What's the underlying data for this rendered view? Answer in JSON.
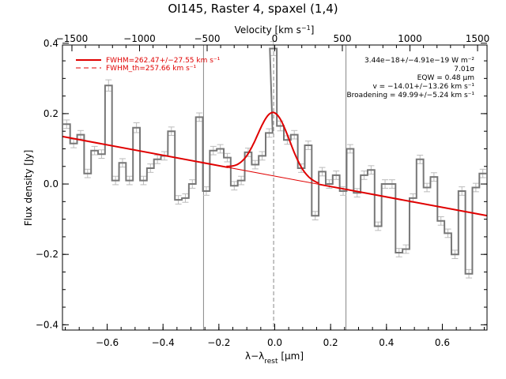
{
  "chart_data": {
    "type": "line",
    "title": "OI145, Raster 4, spaxel (1,4)",
    "xlabel": "λ−λ_rest [μm]",
    "xlabel_parts": {
      "main": "λ−λ",
      "sub": "rest",
      "unit": " [μm]"
    },
    "ylabel": "Flux density [Jy]",
    "top_axis_label": "Velocity [km s⁻¹]",
    "top_axis_label_parts": {
      "main": "Velocity [km s",
      "sup": "−1",
      "end": "]"
    },
    "xlim": [
      -0.76,
      0.76
    ],
    "ylim": [
      -0.415,
      0.395
    ],
    "top_xlim": [
      -1570,
      1570
    ],
    "x_ticks": [
      -0.6,
      -0.4,
      -0.2,
      0.0,
      0.2,
      0.4,
      0.6
    ],
    "x_tick_labels": [
      "−0.6",
      "−0.4",
      "−0.2",
      "0.0",
      "0.2",
      "0.4",
      "0.6"
    ],
    "y_ticks": [
      -0.4,
      -0.2,
      0.0,
      0.2,
      0.4
    ],
    "y_tick_labels": [
      "−0.4",
      "−0.2",
      "0.0",
      "0.2",
      "0.4"
    ],
    "top_ticks": [
      -1500,
      -1000,
      -500,
      0,
      500,
      1000,
      1500
    ],
    "top_tick_labels": [
      "−1500",
      "−1000",
      "−500",
      "0",
      "500",
      "1000",
      "1500"
    ],
    "vertical_lines": [
      -0.255,
      0.255
    ],
    "center_dashed_line": -0.004,
    "spectrum": {
      "x": [
        -0.745,
        -0.72,
        -0.695,
        -0.67,
        -0.645,
        -0.62,
        -0.595,
        -0.57,
        -0.545,
        -0.52,
        -0.495,
        -0.47,
        -0.445,
        -0.42,
        -0.395,
        -0.37,
        -0.345,
        -0.32,
        -0.295,
        -0.27,
        -0.245,
        -0.22,
        -0.195,
        -0.17,
        -0.145,
        -0.12,
        -0.095,
        -0.07,
        -0.045,
        -0.02,
        -0.005,
        0.02,
        0.045,
        0.07,
        0.095,
        0.12,
        0.145,
        0.17,
        0.195,
        0.22,
        0.245,
        0.27,
        0.295,
        0.32,
        0.345,
        0.37,
        0.395,
        0.42,
        0.445,
        0.47,
        0.495,
        0.52,
        0.545,
        0.57,
        0.595,
        0.62,
        0.645,
        0.67,
        0.695,
        0.72,
        0.745
      ],
      "y": [
        0.17,
        0.115,
        0.14,
        0.03,
        0.095,
        0.085,
        0.28,
        0.01,
        0.06,
        0.01,
        0.16,
        0.01,
        0.045,
        0.07,
        0.08,
        0.15,
        -0.045,
        -0.04,
        0.0,
        0.19,
        -0.02,
        0.095,
        0.1,
        0.075,
        -0.005,
        0.01,
        0.09,
        0.055,
        0.08,
        0.145,
        0.385,
        0.165,
        0.125,
        0.14,
        0.045,
        0.11,
        -0.09,
        0.035,
        0.0,
        0.025,
        -0.02,
        0.1,
        -0.025,
        0.025,
        0.04,
        -0.12,
        0.0,
        0.0,
        -0.195,
        -0.185,
        -0.04,
        0.07,
        -0.01,
        0.02,
        -0.105,
        -0.14,
        -0.2,
        -0.02,
        -0.255,
        -0.01,
        0.03
      ],
      "errors": [
        0.012,
        0.012,
        0.012,
        0.012,
        0.012,
        0.012,
        0.016,
        0.012,
        0.012,
        0.012,
        0.014,
        0.012,
        0.012,
        0.012,
        0.012,
        0.012,
        0.012,
        0.012,
        0.012,
        0.012,
        0.012,
        0.012,
        0.012,
        0.012,
        0.012,
        0.012,
        0.012,
        0.012,
        0.012,
        0.012,
        0.02,
        0.014,
        0.012,
        0.012,
        0.012,
        0.012,
        0.012,
        0.012,
        0.012,
        0.012,
        0.012,
        0.012,
        0.012,
        0.012,
        0.012,
        0.012,
        0.012,
        0.012,
        0.012,
        0.012,
        0.012,
        0.012,
        0.012,
        0.012,
        0.012,
        0.012,
        0.012,
        0.012,
        0.012,
        0.012,
        0.012
      ]
    },
    "baseline": {
      "y_at_xmin": 0.135,
      "y_at_xmax": -0.09
    },
    "gaussian": {
      "center": -0.004,
      "peak_above_baseline": 0.18,
      "fwhm_um": 0.134,
      "x_range": [
        -0.17,
        0.16
      ]
    },
    "legend": [
      {
        "label": "FWHM=262.47+/−27.55 km s⁻¹",
        "style": "solid",
        "color": "#e00000"
      },
      {
        "label": "FWHM_th=257.66 km s⁻¹",
        "style": "dashed",
        "color": "#e00000"
      }
    ],
    "annotations": [
      "3.44e−18+/−4.91e−19 W m⁻²",
      "7.01σ",
      "EQW = 0.48 μm",
      "v = −14.01+/−13.26 km s⁻¹",
      "Broadening = 49.99+/−5.24 km s⁻¹"
    ],
    "colors": {
      "spectrum": "#777777",
      "errorbars": "#bbbbbb",
      "fit": "#e00000",
      "axes": "#000000",
      "vlines": "#888888"
    }
  }
}
